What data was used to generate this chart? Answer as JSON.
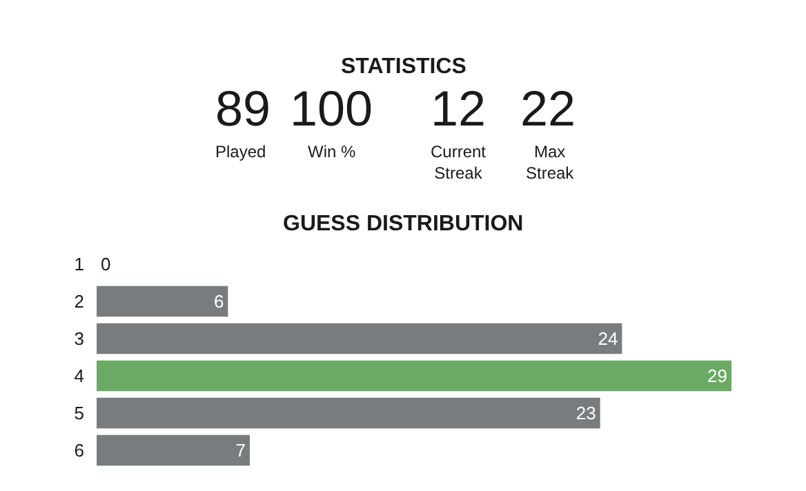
{
  "chart_data": [
    {
      "type": "other",
      "title": "STATISTICS",
      "categories": [
        "Played",
        "Win %",
        "Current\nStreak",
        "Max\nStreak"
      ],
      "values": [
        89,
        100,
        12,
        22
      ],
      "data_labels": true
    },
    {
      "type": "bar",
      "title": "GUESS DISTRIBUTION",
      "orientation": "horizontal",
      "categories": [
        "1",
        "2",
        "3",
        "4",
        "5",
        "6"
      ],
      "values": [
        0,
        6,
        24,
        29,
        23,
        7
      ],
      "colors": [
        "#787c7e",
        "#787c7e",
        "#787c7e",
        "#6aaa64",
        "#787c7e",
        "#787c7e"
      ],
      "xlim": [
        0,
        29
      ],
      "tick_labels": "y",
      "data_labels": true
    }
  ]
}
